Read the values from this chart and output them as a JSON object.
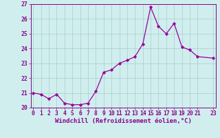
{
  "x": [
    0,
    1,
    2,
    3,
    4,
    5,
    6,
    7,
    8,
    9,
    10,
    11,
    12,
    13,
    14,
    15,
    16,
    17,
    18,
    19,
    20,
    21,
    23
  ],
  "y": [
    21.0,
    20.9,
    20.6,
    20.9,
    20.3,
    20.2,
    20.2,
    20.3,
    21.1,
    22.4,
    22.55,
    23.0,
    23.2,
    23.45,
    24.3,
    26.8,
    25.5,
    25.0,
    25.7,
    24.1,
    23.9,
    23.45,
    23.35
  ],
  "line_color": "#990099",
  "marker": "D",
  "marker_size": 2.2,
  "bg_color": "#d0eeee",
  "grid_color": "#aacccc",
  "xlabel": "Windchill (Refroidissement éolien,°C)",
  "xlabel_color": "#880088",
  "tick_color": "#880088",
  "ylim": [
    20,
    27
  ],
  "xlim": [
    -0.3,
    23.3
  ],
  "yticks": [
    20,
    21,
    22,
    23,
    24,
    25,
    26,
    27
  ],
  "xticks": [
    0,
    1,
    2,
    3,
    4,
    5,
    6,
    7,
    8,
    9,
    10,
    11,
    12,
    13,
    14,
    15,
    16,
    17,
    18,
    19,
    20,
    21,
    23
  ],
  "tick_fontsize": 5.8,
  "xlabel_fontsize": 6.5,
  "ylabel_fontsize": 6.5
}
